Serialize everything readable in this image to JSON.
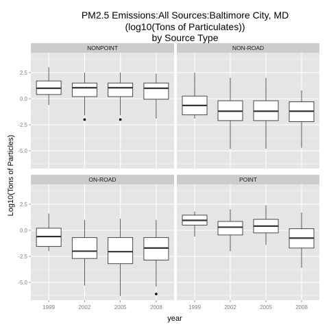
{
  "chart_data": {
    "type": "boxplot",
    "title": [
      "PM2.5 Emissions:All Sources:Baltimore City, MD",
      "(log10(Tons of Particulates))",
      "by Source Type"
    ],
    "xlabel": "year",
    "ylabel": "Log10(Tons of Particles)",
    "categories": [
      "1999",
      "2002",
      "2005",
      "2008"
    ],
    "y_ticks": [
      2.5,
      0.0,
      -2.5,
      -5.0
    ],
    "y_tick_labels": [
      "2.5",
      "0.0",
      "-2.5",
      "-5.0"
    ],
    "ylim": [
      -6.7,
      4.4
    ],
    "grid": true,
    "facets": [
      {
        "name": "NONPOINT",
        "boxes": [
          {
            "year": "1999",
            "low": -0.6,
            "q1": 0.4,
            "median": 1.0,
            "q3": 1.7,
            "high": 3.0,
            "outliers": []
          },
          {
            "year": "2002",
            "low": -1.6,
            "q1": 0.2,
            "median": 1.05,
            "q3": 1.5,
            "high": 2.5,
            "outliers": [
              -2.0
            ]
          },
          {
            "year": "2005",
            "low": -1.6,
            "q1": 0.2,
            "median": 1.05,
            "q3": 1.5,
            "high": 2.5,
            "outliers": [
              -2.0
            ]
          },
          {
            "year": "2008",
            "low": -1.9,
            "q1": -0.05,
            "median": 1.0,
            "q3": 1.5,
            "high": 2.4,
            "outliers": []
          }
        ]
      },
      {
        "name": "NON-ROAD",
        "boxes": [
          {
            "year": "1999",
            "low": -1.9,
            "q1": -1.55,
            "median": -0.65,
            "q3": 0.25,
            "high": 2.5,
            "outliers": []
          },
          {
            "year": "2002",
            "low": -4.8,
            "q1": -2.1,
            "median": -1.2,
            "q3": -0.2,
            "high": 2.0,
            "outliers": []
          },
          {
            "year": "2005",
            "low": -4.8,
            "q1": -2.1,
            "median": -1.2,
            "q3": -0.2,
            "high": 2.0,
            "outliers": []
          },
          {
            "year": "2008",
            "low": -4.7,
            "q1": -2.2,
            "median": -1.2,
            "q3": -0.3,
            "high": 0.8,
            "outliers": []
          }
        ]
      },
      {
        "name": "ON-ROAD",
        "boxes": [
          {
            "year": "1999",
            "low": -2.0,
            "q1": -1.55,
            "median": -0.6,
            "q3": 0.2,
            "high": 1.6,
            "outliers": []
          },
          {
            "year": "2002",
            "low": -5.3,
            "q1": -2.7,
            "median": -2.0,
            "q3": -0.7,
            "high": 1.0,
            "outliers": []
          },
          {
            "year": "2005",
            "low": -6.3,
            "q1": -3.2,
            "median": -2.05,
            "q3": -0.7,
            "high": 1.1,
            "outliers": []
          },
          {
            "year": "2008",
            "low": -5.4,
            "q1": -2.85,
            "median": -1.7,
            "q3": -0.7,
            "high": 1.0,
            "outliers": [
              -6.1
            ]
          }
        ]
      },
      {
        "name": "POINT",
        "boxes": [
          {
            "year": "1999",
            "low": -0.6,
            "q1": 0.5,
            "median": 0.95,
            "q3": 1.45,
            "high": 1.8,
            "outliers": []
          },
          {
            "year": "2002",
            "low": -2.0,
            "q1": -0.45,
            "median": 0.3,
            "q3": 0.85,
            "high": 2.0,
            "outliers": []
          },
          {
            "year": "2005",
            "low": -1.4,
            "q1": -0.25,
            "median": 0.4,
            "q3": 1.05,
            "high": 2.4,
            "outliers": []
          },
          {
            "year": "2008",
            "low": -3.6,
            "q1": -1.7,
            "median": -0.75,
            "q3": 0.15,
            "high": 1.7,
            "outliers": []
          }
        ]
      }
    ],
    "colors": {
      "panel_bg": "#e5e5e5",
      "strip_bg": "#cccccc",
      "grid_major": "#ffffff",
      "grid_minor": "#f2f2f2",
      "box_fill": "#ffffff",
      "box_line": "#333333",
      "tick_text": "#7f7f7f"
    }
  }
}
